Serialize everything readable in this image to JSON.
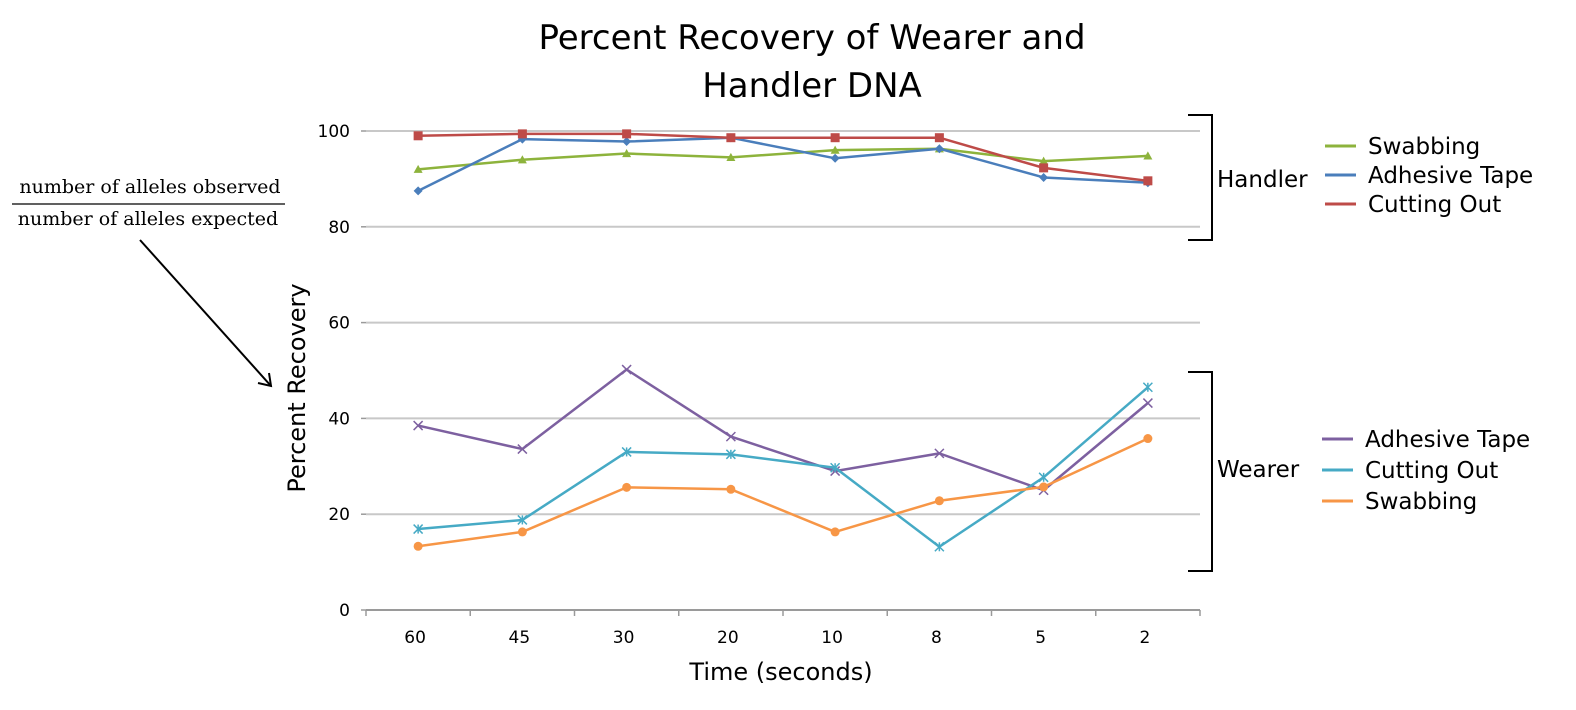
{
  "chart_data": {
    "type": "line",
    "title": [
      "Percent Recovery of Wearer and",
      "Handler DNA"
    ],
    "xlabel": "Time (seconds)",
    "ylabel": "Percent Recovery",
    "categories": [
      "60",
      "45",
      "30",
      "20",
      "10",
      "8",
      "5",
      "2"
    ],
    "ylim": [
      0,
      100
    ],
    "yticks": [
      0,
      20,
      40,
      60,
      80,
      100
    ],
    "grid": true,
    "groups": [
      {
        "label": "Handler",
        "series": [
          {
            "name": "Swabbing",
            "color": "#8db33c",
            "marker": "triangle",
            "values": [
              92,
              94,
              95.3,
              94.5,
              96,
              96.3,
              93.7,
              94.8
            ]
          },
          {
            "name": "Adhesive Tape",
            "color": "#4a7ebb",
            "marker": "diamond",
            "values": [
              87.5,
              98.3,
              97.8,
              98.6,
              94.3,
              96.3,
              90.3,
              89.2
            ]
          },
          {
            "name": "Cutting Out",
            "color": "#be4b48",
            "marker": "square",
            "values": [
              99,
              99.4,
              99.4,
              98.6,
              98.6,
              98.6,
              92.3,
              89.6
            ]
          }
        ]
      },
      {
        "label": "Wearer",
        "series": [
          {
            "name": "Adhesive Tape",
            "color": "#7d60a0",
            "marker": "x",
            "values": [
              38.5,
              33.6,
              50.2,
              36.2,
              29,
              32.7,
              25,
              43.2
            ]
          },
          {
            "name": "Cutting Out",
            "color": "#46aac5",
            "marker": "star",
            "values": [
              16.9,
              18.8,
              33,
              32.5,
              29.7,
              13.2,
              27.7,
              46.5
            ]
          },
          {
            "name": "Swabbing",
            "color": "#f79646",
            "marker": "circle",
            "values": [
              13.3,
              16.3,
              25.6,
              25.2,
              16.3,
              22.8,
              25.7,
              35.8
            ]
          }
        ]
      }
    ],
    "annotation": {
      "numerator": "number of alleles observed",
      "denominator": "number of alleles expected"
    }
  }
}
